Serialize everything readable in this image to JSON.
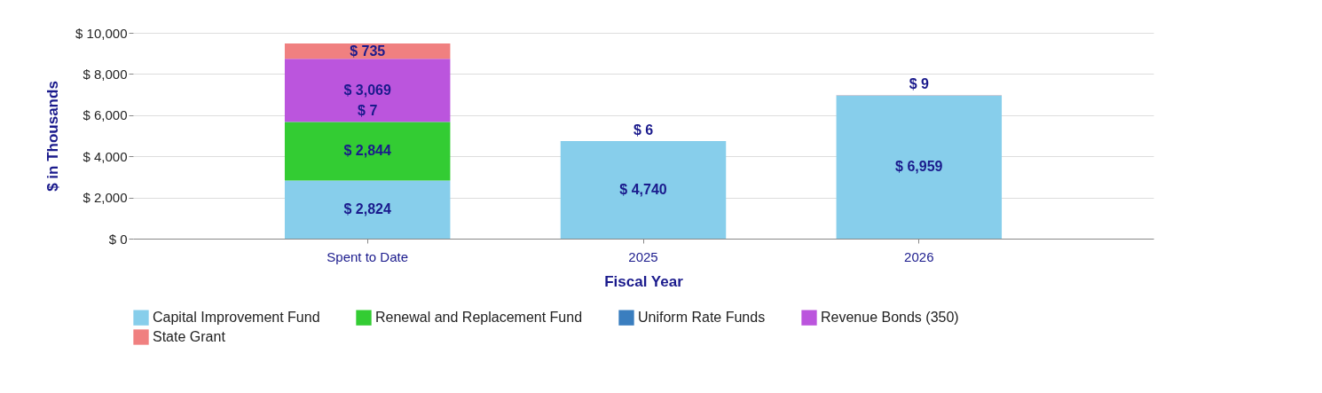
{
  "chart_data": {
    "type": "bar",
    "stacked": true,
    "xlabel": "Fiscal Year",
    "ylabel": "$ in Thousands",
    "categories": [
      "Spent to Date",
      "2025",
      "2026"
    ],
    "series": [
      {
        "name": "Capital Improvement Fund",
        "color": "#87ceeb",
        "values": [
          2824,
          4740,
          6959
        ],
        "value_labels": [
          "$ 2,824",
          "$ 4,740",
          "$ 6,959"
        ]
      },
      {
        "name": "Renewal and Replacement Fund",
        "color": "#33cc33",
        "values": [
          2844,
          null,
          null
        ],
        "value_labels": [
          "$ 2,844",
          null,
          null
        ]
      },
      {
        "name": "Uniform Rate Funds",
        "color": "#3a7ebf",
        "values": [
          7,
          null,
          null
        ],
        "value_labels": [
          "$ 7",
          null,
          null
        ]
      },
      {
        "name": "Revenue Bonds (350)",
        "color": "#bb55dd",
        "values": [
          3069,
          null,
          null
        ],
        "value_labels": [
          "$ 3,069",
          null,
          null
        ]
      },
      {
        "name": "State Grant",
        "color": "#f08080",
        "values": [
          735,
          6,
          9
        ],
        "value_labels": [
          "$ 735",
          "$ 6",
          "$ 9"
        ]
      }
    ],
    "ylim": [
      0,
      10000
    ],
    "yticks": [
      {
        "value": 0,
        "label": "$ 0"
      },
      {
        "value": 2000,
        "label": "$ 2,000"
      },
      {
        "value": 4000,
        "label": "$ 4,000"
      },
      {
        "value": 6000,
        "label": "$ 6,000"
      },
      {
        "value": 8000,
        "label": "$ 8,000"
      },
      {
        "value": 10000,
        "label": "$ 10,000"
      }
    ],
    "grid": "y",
    "legend": "bottom"
  }
}
